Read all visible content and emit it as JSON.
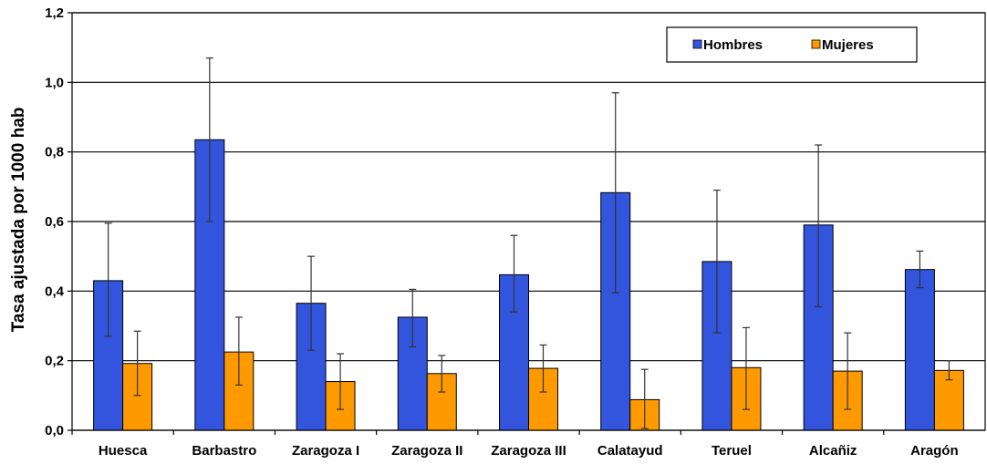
{
  "chart_data": {
    "type": "bar",
    "title": "",
    "xlabel": "",
    "ylabel": "Tasa ajustada por 1000 hab",
    "ylim": [
      0,
      1.2
    ],
    "y_ticks": [
      "0,0",
      "0,2",
      "0,4",
      "0,6",
      "0,8",
      "1,0",
      "1,2"
    ],
    "grid": "horizontal",
    "legend_position": "top-right",
    "categories": [
      "Huesca",
      "Barbastro",
      "Zaragoza I",
      "Zaragoza II",
      "Zaragoza III",
      "Calatayud",
      "Teruel",
      "Alcañiz",
      "Aragón"
    ],
    "series": [
      {
        "name": "Hombres",
        "color": "#3355dd",
        "values": [
          0.43,
          0.835,
          0.365,
          0.325,
          0.447,
          0.683,
          0.485,
          0.59,
          0.462
        ],
        "error_low": [
          0.27,
          0.6,
          0.23,
          0.24,
          0.34,
          0.395,
          0.28,
          0.355,
          0.41
        ],
        "error_high": [
          0.595,
          1.07,
          0.5,
          0.405,
          0.56,
          0.97,
          0.69,
          0.82,
          0.515
        ]
      },
      {
        "name": "Mujeres",
        "color": "#ff9900",
        "values": [
          0.192,
          0.225,
          0.14,
          0.163,
          0.178,
          0.088,
          0.18,
          0.17,
          0.172
        ],
        "error_low": [
          0.1,
          0.13,
          0.06,
          0.11,
          0.11,
          0.005,
          0.06,
          0.06,
          0.145
        ],
        "error_high": [
          0.285,
          0.325,
          0.22,
          0.215,
          0.245,
          0.175,
          0.295,
          0.28,
          0.2
        ]
      }
    ]
  }
}
